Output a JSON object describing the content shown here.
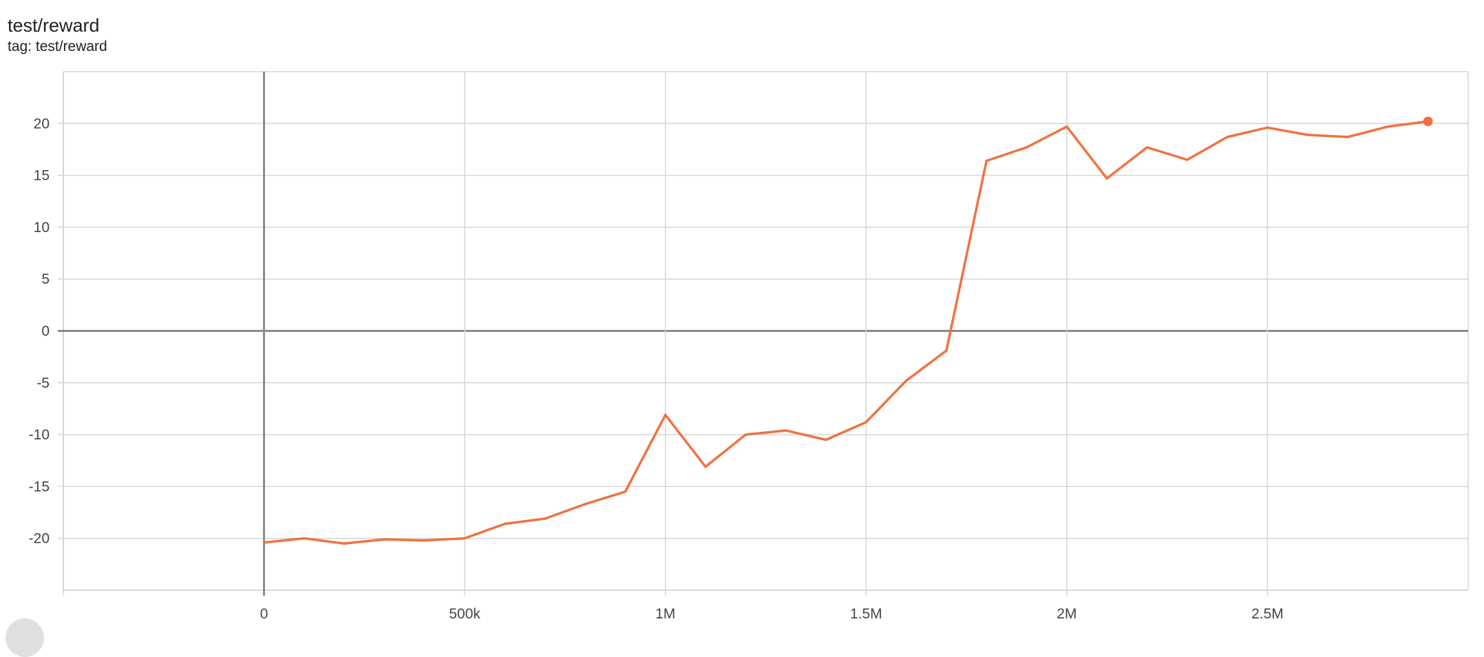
{
  "header": {
    "title": "test/reward",
    "subtitle": "tag: test/reward"
  },
  "colors": {
    "series": "#f07240",
    "grid": "#d6d6d6",
    "axis_zero": "#8a8a8a"
  },
  "chart_data": {
    "type": "line",
    "title": "test/reward",
    "xlabel": "",
    "ylabel": "",
    "xlim": [
      -500000,
      3000000
    ],
    "ylim": [
      -25,
      25
    ],
    "grid": true,
    "x_ticks": [
      0,
      500000,
      1000000,
      1500000,
      2000000,
      2500000
    ],
    "x_tick_labels": [
      "0",
      "500k",
      "1M",
      "1.5M",
      "2M",
      "2.5M"
    ],
    "y_ticks": [
      -20,
      -15,
      -10,
      -5,
      0,
      5,
      10,
      15,
      20
    ],
    "y_tick_labels": [
      "-20",
      "-15",
      "-10",
      "-5",
      "0",
      "5",
      "10",
      "15",
      "20"
    ],
    "series": [
      {
        "x": [
          0,
          100000,
          200000,
          300000,
          400000,
          500000,
          600000,
          700000,
          800000,
          900000,
          1000000,
          1100000,
          1200000,
          1300000,
          1400000,
          1500000,
          1600000,
          1700000,
          1800000,
          1900000,
          2000000,
          2100000,
          2200000,
          2300000,
          2400000,
          2500000,
          2600000,
          2700000,
          2800000,
          2900000
        ],
        "y": [
          -20.4,
          -20.0,
          -20.5,
          -20.1,
          -20.2,
          -20.0,
          -18.6,
          -18.1,
          -16.7,
          -15.5,
          -8.1,
          -13.1,
          -10.0,
          -9.6,
          -10.5,
          -8.8,
          -4.8,
          -1.9,
          16.4,
          17.7,
          19.7,
          14.7,
          17.7,
          16.5,
          18.7,
          19.6,
          18.9,
          18.7,
          19.7,
          20.2
        ]
      }
    ]
  }
}
